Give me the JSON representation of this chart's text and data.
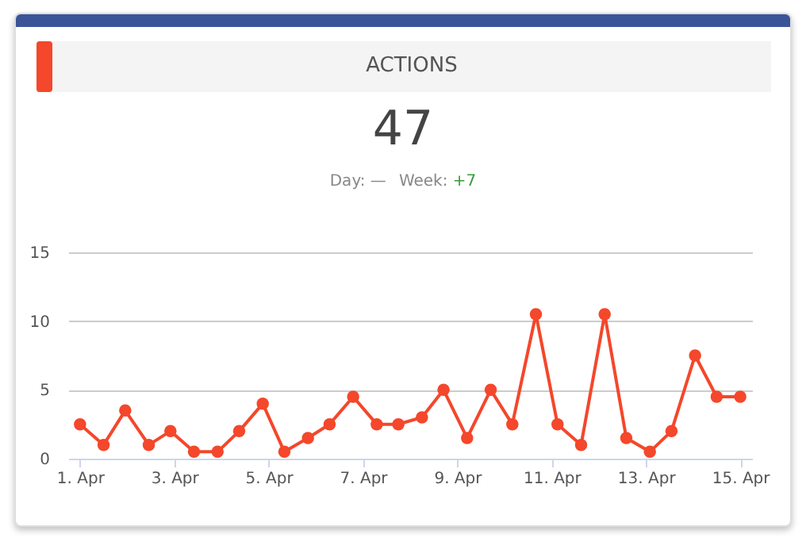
{
  "chart_data": {
    "type": "line",
    "title": "ACTIONS",
    "subtitle": "47",
    "annotations": [
      "Day: —",
      "Week: +7"
    ],
    "x": [
      "--04-01T00:00",
      "--04-01T12:00",
      "--04-01T23:00",
      "--04-02T11:00",
      "--04-02T22:00",
      "--04-03T10:00",
      "--04-03T22:00",
      "--04-04T09:00",
      "--04-04T21:00",
      "--04-05T08:00",
      "--04-05T20:00",
      "--04-06T07:00",
      "--04-06T19:00",
      "--04-07T07:00",
      "--04-07T18:00",
      "--04-08T06:00",
      "--04-08T17:00",
      "--04-09T05:00",
      "--04-09T17:00",
      "--04-10T04:00",
      "--04-10T16:00",
      "--04-11T03:00",
      "--04-11T15:00",
      "--04-12T03:00",
      "--04-12T14:00",
      "--04-13T02:00",
      "--04-13T13:00",
      "--04-14T01:00",
      "--04-14T12:00",
      "--04-15T00:00"
    ],
    "series": [
      {
        "color": "#f4472b",
        "values": [
          2.5,
          1,
          3.5,
          1,
          2,
          0.5,
          0.5,
          2,
          4,
          0.5,
          1.5,
          2.5,
          4.5,
          2.5,
          2.5,
          3,
          5,
          1.5,
          5,
          2.5,
          10.5,
          2.5,
          1,
          10.5,
          1.5,
          0.5,
          2,
          7.5,
          4.5,
          4.5
        ]
      }
    ],
    "xlim": [
      "--03-31T18:00",
      "--04-15T06:00"
    ],
    "xticks": [
      {
        "value": "--04-01",
        "label": "1. Apr"
      },
      {
        "value": "--04-03",
        "label": "3. Apr"
      },
      {
        "value": "--04-05",
        "label": "5. Apr"
      },
      {
        "value": "--04-07",
        "label": "7. Apr"
      },
      {
        "value": "--04-09",
        "label": "9. Apr"
      },
      {
        "value": "--04-11",
        "label": "11. Apr"
      },
      {
        "value": "--04-13",
        "label": "13. Apr"
      },
      {
        "value": "--04-15",
        "label": "15. Apr"
      }
    ],
    "ylim": [
      0,
      15
    ],
    "yticks": [
      0,
      5,
      10,
      15
    ],
    "grid": "y",
    "marker": "circle",
    "line_style": "solid",
    "legend": false
  }
}
